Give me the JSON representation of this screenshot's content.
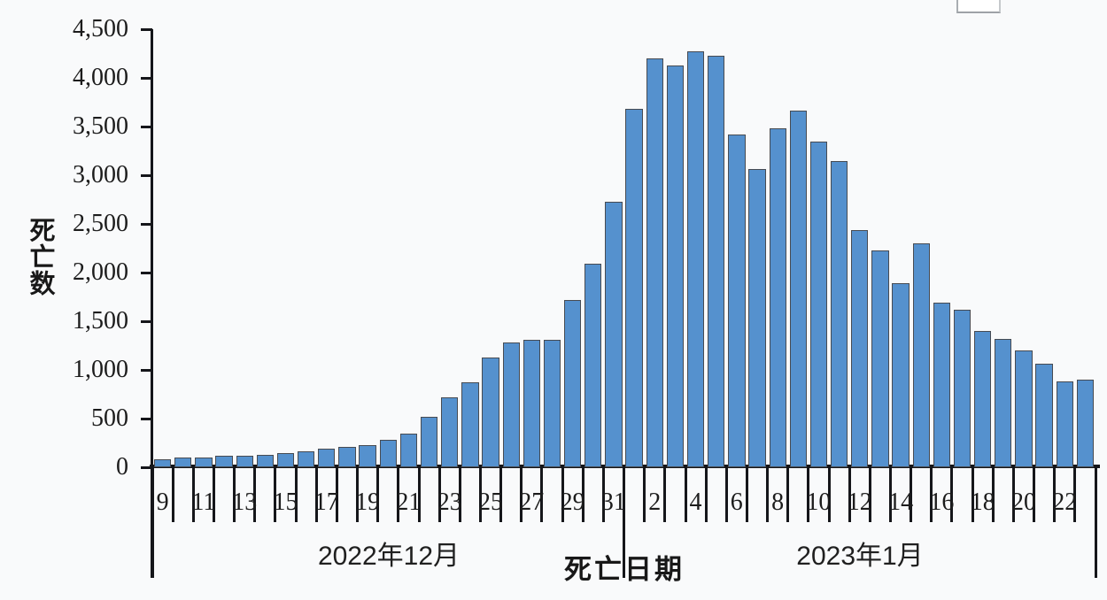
{
  "chart_data": {
    "type": "bar",
    "title": "",
    "grid": false,
    "legend": null,
    "bar_color": "#5591CE",
    "bar_border_color": "#474B52",
    "axis_color": "#15161A",
    "background_color": "#F9FAFB",
    "y_axis": {
      "title": "死亡数",
      "min": 0,
      "max": 4500,
      "tick_interval": 500,
      "tick_labels": [
        "0",
        "500",
        "1,000",
        "1,500",
        "2,000",
        "2,500",
        "3,000",
        "3,500",
        "4,000",
        "4,500"
      ]
    },
    "x_axis": {
      "title": "死亡日期",
      "month_groups": [
        {
          "label": "2022年12月",
          "days": 23
        },
        {
          "label": "2023年1月",
          "days": 23
        }
      ]
    },
    "bars": [
      {
        "date": "2022-12-09",
        "tick": "9",
        "value": 85
      },
      {
        "date": "2022-12-10",
        "tick": "",
        "value": 100
      },
      {
        "date": "2022-12-11",
        "tick": "11",
        "value": 100
      },
      {
        "date": "2022-12-12",
        "tick": "",
        "value": 115
      },
      {
        "date": "2022-12-13",
        "tick": "13",
        "value": 120
      },
      {
        "date": "2022-12-14",
        "tick": "",
        "value": 125
      },
      {
        "date": "2022-12-15",
        "tick": "15",
        "value": 145
      },
      {
        "date": "2022-12-16",
        "tick": "",
        "value": 165
      },
      {
        "date": "2022-12-17",
        "tick": "17",
        "value": 190
      },
      {
        "date": "2022-12-18",
        "tick": "",
        "value": 210
      },
      {
        "date": "2022-12-19",
        "tick": "19",
        "value": 230
      },
      {
        "date": "2022-12-20",
        "tick": "",
        "value": 280
      },
      {
        "date": "2022-12-21",
        "tick": "21",
        "value": 350
      },
      {
        "date": "2022-12-22",
        "tick": "",
        "value": 520
      },
      {
        "date": "2022-12-23",
        "tick": "23",
        "value": 715
      },
      {
        "date": "2022-12-24",
        "tick": "",
        "value": 870
      },
      {
        "date": "2022-12-25",
        "tick": "25",
        "value": 1130
      },
      {
        "date": "2022-12-26",
        "tick": "",
        "value": 1280
      },
      {
        "date": "2022-12-27",
        "tick": "27",
        "value": 1310
      },
      {
        "date": "2022-12-28",
        "tick": "",
        "value": 1310
      },
      {
        "date": "2022-12-29",
        "tick": "29",
        "value": 1715
      },
      {
        "date": "2022-12-30",
        "tick": "",
        "value": 2090
      },
      {
        "date": "2022-12-31",
        "tick": "31",
        "value": 2725
      },
      {
        "date": "2023-01-01",
        "tick": "",
        "value": 3680
      },
      {
        "date": "2023-01-02",
        "tick": "2",
        "value": 4200
      },
      {
        "date": "2023-01-03",
        "tick": "",
        "value": 4125
      },
      {
        "date": "2023-01-04",
        "tick": "4",
        "value": 4273
      },
      {
        "date": "2023-01-05",
        "tick": "",
        "value": 4225
      },
      {
        "date": "2023-01-06",
        "tick": "6",
        "value": 3420
      },
      {
        "date": "2023-01-07",
        "tick": "",
        "value": 3060
      },
      {
        "date": "2023-01-08",
        "tick": "8",
        "value": 3480
      },
      {
        "date": "2023-01-09",
        "tick": "",
        "value": 3660
      },
      {
        "date": "2023-01-10",
        "tick": "10",
        "value": 3345
      },
      {
        "date": "2023-01-11",
        "tick": "",
        "value": 3150
      },
      {
        "date": "2023-01-12",
        "tick": "12",
        "value": 2440
      },
      {
        "date": "2023-01-13",
        "tick": "",
        "value": 2230
      },
      {
        "date": "2023-01-14",
        "tick": "14",
        "value": 1890
      },
      {
        "date": "2023-01-15",
        "tick": "",
        "value": 2300
      },
      {
        "date": "2023-01-16",
        "tick": "16",
        "value": 1690
      },
      {
        "date": "2023-01-17",
        "tick": "",
        "value": 1620
      },
      {
        "date": "2023-01-18",
        "tick": "18",
        "value": 1400
      },
      {
        "date": "2023-01-19",
        "tick": "",
        "value": 1320
      },
      {
        "date": "2023-01-20",
        "tick": "20",
        "value": 1200
      },
      {
        "date": "2023-01-21",
        "tick": "",
        "value": 1060
      },
      {
        "date": "2023-01-22",
        "tick": "22",
        "value": 880
      },
      {
        "date": "2023-01-23",
        "tick": "",
        "value": 896
      }
    ]
  }
}
